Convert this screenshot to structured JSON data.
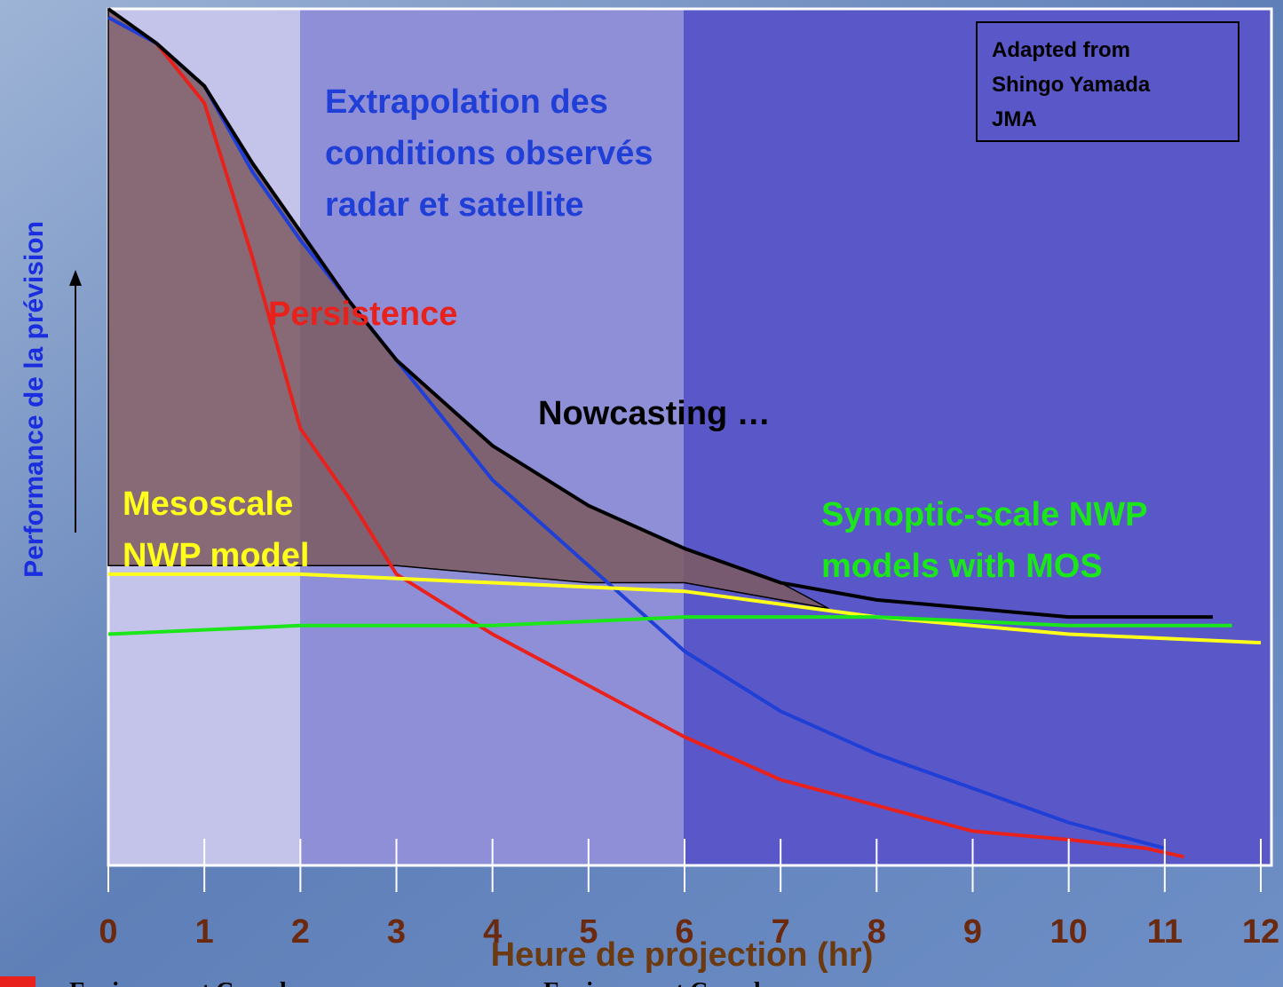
{
  "chart_data": {
    "type": "line",
    "x_axis_label": "Heure de projection (hr)",
    "y_axis_label": "Performance de la prévision",
    "xlim": [
      0,
      12
    ],
    "ylim": [
      0,
      100
    ],
    "xticks": [
      0,
      1,
      2,
      3,
      4,
      5,
      6,
      7,
      8,
      9,
      10,
      11,
      12
    ],
    "series": [
      {
        "name": [
          "Persistence"
        ],
        "color": "#e8211c",
        "x": [
          0,
          0.5,
          1,
          1.5,
          2,
          2.5,
          3,
          4,
          5,
          6,
          7,
          8,
          9,
          10,
          10.8,
          11.2
        ],
        "values": [
          99,
          96,
          89,
          71,
          51,
          43,
          34,
          27,
          21,
          15,
          10,
          7,
          4,
          3,
          2,
          1
        ]
      },
      {
        "name": [
          "Extrapolation des",
          "conditions observés",
          "radar et satellite"
        ],
        "color": "#1f3fd6",
        "x": [
          0,
          0.5,
          1,
          1.5,
          2,
          2.5,
          3,
          4,
          5,
          6,
          7,
          8,
          9,
          10,
          11
        ],
        "values": [
          99,
          96,
          91,
          81,
          73,
          66,
          59,
          45,
          35,
          25,
          18,
          13,
          9,
          5,
          2
        ]
      },
      {
        "name": [
          "Nowcasting …"
        ],
        "color": "#000000",
        "x": [
          0,
          0.5,
          1,
          1.5,
          2,
          2.5,
          3,
          4,
          5,
          6,
          7,
          8,
          9,
          10,
          11,
          11.5
        ],
        "values": [
          100,
          96,
          91,
          82,
          74,
          66,
          59,
          49,
          42,
          37,
          33,
          31,
          30,
          29,
          29,
          29
        ]
      },
      {
        "name": [
          "Mesoscale",
          "NWP model"
        ],
        "color": "#ffff1a",
        "x": [
          0,
          2,
          4,
          6,
          8,
          10,
          12
        ],
        "values": [
          34,
          34,
          33,
          32,
          29,
          27,
          26
        ]
      },
      {
        "name": [
          "Synoptic-scale NWP",
          "models with MOS"
        ],
        "color": "#1ae61a",
        "x": [
          0,
          2,
          4,
          6,
          8,
          10,
          11.7
        ],
        "values": [
          27,
          28,
          28,
          29,
          29,
          28,
          28
        ]
      }
    ],
    "shaded_region": {
      "color": "#7d5a60",
      "x": [
        0,
        0.5,
        1,
        1.5,
        2,
        2.5,
        3,
        4,
        5,
        6,
        7,
        7.5
      ],
      "upper": [
        100,
        96,
        91,
        82,
        74,
        66,
        59,
        49,
        42,
        37,
        33,
        30
      ],
      "lower": [
        35,
        35,
        35,
        35,
        35,
        35,
        35,
        34,
        33,
        33,
        31,
        30
      ]
    },
    "note": [
      "Adapted from",
      "Shingo Yamada",
      "JMA"
    ],
    "footer": [
      "Environment Canada",
      "Environment Canada"
    ]
  }
}
